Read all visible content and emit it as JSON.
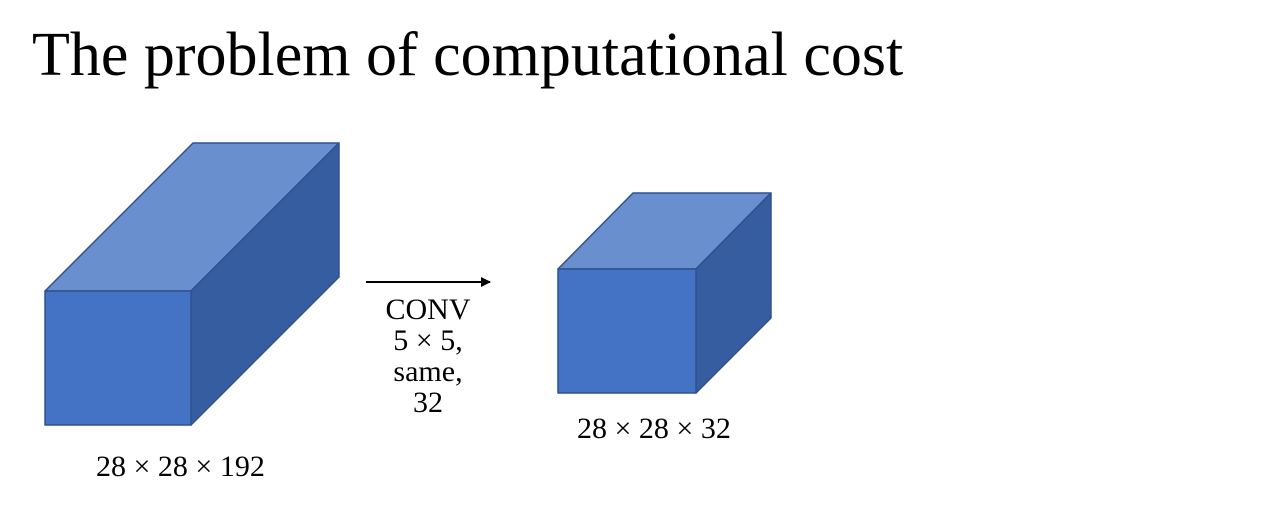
{
  "slide": {
    "title": "The problem of computational cost"
  },
  "colors": {
    "cube_front": "#4472c4",
    "cube_top": "#6a8fcf",
    "cube_side": "#365d9f",
    "cube_edge": "#2f528f",
    "arrow": "#000000"
  },
  "input_volume": {
    "dims_label": "28 × 28 × 192"
  },
  "operation": {
    "lines": [
      "CONV",
      "5 × 5,",
      "same,",
      "32"
    ]
  },
  "output_volume": {
    "dims_label": "28 × 28 × 32"
  }
}
